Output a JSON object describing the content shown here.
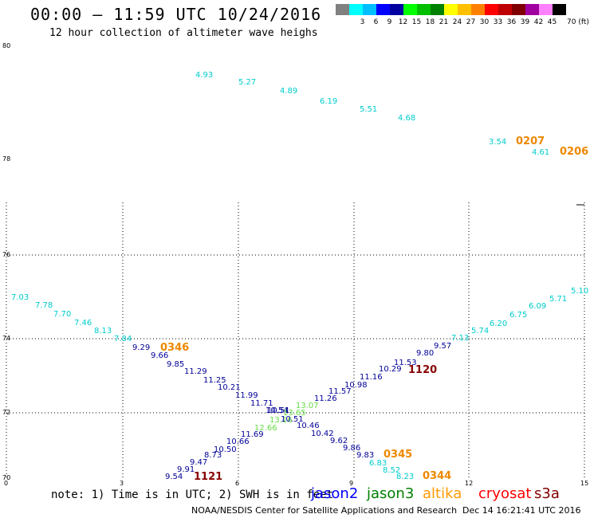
{
  "header": {
    "title": "00:00 – 11:59 UTC 10/24/2016",
    "subtitle": "12 hour collection of altimeter wave heighs"
  },
  "legend": {
    "unit": "70 (ft)",
    "entries": [
      {
        "label": "",
        "color": "#808080"
      },
      {
        "label": "3",
        "color": "#00ffff"
      },
      {
        "label": "6",
        "color": "#00bfff"
      },
      {
        "label": "9",
        "color": "#0000ff"
      },
      {
        "label": "12",
        "color": "#0000a0"
      },
      {
        "label": "15",
        "color": "#00ff00"
      },
      {
        "label": "18",
        "color": "#00c000"
      },
      {
        "label": "21",
        "color": "#008000"
      },
      {
        "label": "24",
        "color": "#ffff00"
      },
      {
        "label": "27",
        "color": "#ffc000"
      },
      {
        "label": "30",
        "color": "#ff8000"
      },
      {
        "label": "33",
        "color": "#ff0000"
      },
      {
        "label": "36",
        "color": "#c00000"
      },
      {
        "label": "39",
        "color": "#800000"
      },
      {
        "label": "42",
        "color": "#a000a0"
      },
      {
        "label": "45",
        "color": "#ff80ff"
      },
      {
        "label": "",
        "color": "#000000"
      }
    ]
  },
  "axes": {
    "x_ticks": [
      "0",
      "3",
      "6",
      "9",
      "12",
      "15"
    ],
    "y_ticks": [
      "70",
      "72",
      "74",
      "76",
      "78",
      "80"
    ]
  },
  "swh_values": {
    "top_track": [
      "4.93",
      "5.27",
      "4.89",
      "6.19",
      "5.51",
      "4.68",
      "3.54",
      "4.61"
    ],
    "left_track_upper": [
      "7.03",
      "7.78",
      "7.70",
      "7.46",
      "8.13",
      "7.84"
    ],
    "left_track_lower": [
      "9.29",
      "9.66",
      "9.85",
      "11.29",
      "11.25",
      "10.21",
      "11.99",
      "11.71",
      "10.51",
      "10.46",
      "10.42",
      "9.62",
      "9.86",
      "9.83"
    ],
    "left_track_tail": [
      "6.83",
      "8.52",
      "8.23"
    ],
    "right_track_lower": [
      "9.54",
      "9.91",
      "9.47",
      "8.73",
      "10.50",
      "10.66",
      "11.69"
    ],
    "right_track_mid": [
      "10.54",
      "11.26",
      "11.57",
      "10.98",
      "11.16",
      "10.29",
      "11.53",
      "9.80",
      "9.57"
    ],
    "right_track_upper": [
      "7.13",
      "5.74",
      "6.20",
      "6.75",
      "6.09",
      "5.71",
      "5.10"
    ],
    "jason3_values": [
      "13.07",
      "13.65",
      "13.16",
      "12.66"
    ]
  },
  "pass_times": {
    "altika_top_1": "0207",
    "altika_top_2": "0206",
    "altika_left": "0346",
    "altika_right_1": "0345",
    "altika_right_2": "0344",
    "s3a_right": "1120",
    "s3a_bottom": "1121"
  },
  "footer": {
    "note": "note: 1) Time is in UTC; 2) SWH is in feet",
    "satellites": [
      {
        "name": "jason2",
        "color": "#0000ff"
      },
      {
        "name": "jason3",
        "color": "#008000"
      },
      {
        "name": "altika",
        "color": "#ff9900"
      },
      {
        "name": "cryosat",
        "color": "#ff0000"
      },
      {
        "name": "s3a",
        "color": "#800000"
      }
    ],
    "credit": "NOAA/NESDIS Center for Satellite Applications and Research",
    "timestamp": "Dec 14 16:21:41 UTC 2016"
  },
  "colors": {
    "cyan": "#00cccc",
    "navy": "#000099",
    "green": "#66dd44",
    "orange": "#ee8800",
    "maroon": "#880000"
  }
}
